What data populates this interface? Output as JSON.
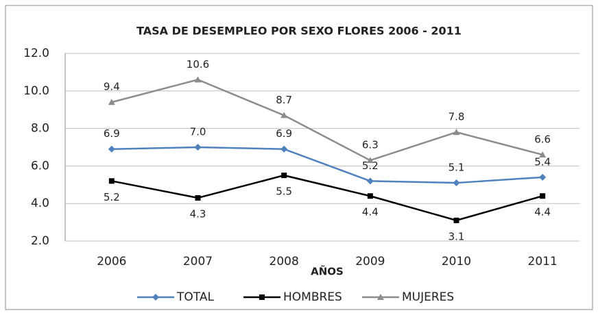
{
  "chart_data": {
    "type": "line",
    "title": "TASA DE DESEMPLEO POR SEXO FLORES 2006 - 2011",
    "x_label": "AÑOS",
    "categories": [
      "2006",
      "2007",
      "2008",
      "2009",
      "2010",
      "2011"
    ],
    "series": [
      {
        "name": "TOTAL",
        "color": "#4f81bd",
        "marker": "diamond",
        "values": [
          6.9,
          7.0,
          6.9,
          5.2,
          5.1,
          5.4
        ],
        "value_labels": [
          "6.9",
          "7.0",
          "6.9",
          "5.2",
          "5.1",
          "5.4"
        ],
        "label_position": "above"
      },
      {
        "name": "HOMBRES",
        "color": "#000000",
        "marker": "square",
        "values": [
          5.2,
          4.3,
          5.5,
          4.4,
          3.1,
          4.4
        ],
        "value_labels": [
          "5.2",
          "4.3",
          "5.5",
          "4.4",
          "3.1",
          "4.4"
        ],
        "label_position": "below"
      },
      {
        "name": "MUJERES",
        "color": "#8c8c8c",
        "marker": "triangle",
        "values": [
          9.4,
          10.6,
          8.7,
          6.3,
          7.8,
          6.6
        ],
        "value_labels": [
          "9.4",
          "10.6",
          "8.7",
          "6.3",
          "7.8",
          "6.6"
        ],
        "label_position": "above"
      }
    ],
    "ylim": [
      2,
      12
    ],
    "yticks": [
      {
        "value": 2,
        "label": "2.0"
      },
      {
        "value": 4,
        "label": "4.0"
      },
      {
        "value": 6,
        "label": "6.0"
      },
      {
        "value": 8,
        "label": "8.0"
      },
      {
        "value": 10,
        "label": "10.0"
      },
      {
        "value": 12,
        "label": "12.0"
      }
    ],
    "grid": true,
    "legend": "bottom"
  }
}
